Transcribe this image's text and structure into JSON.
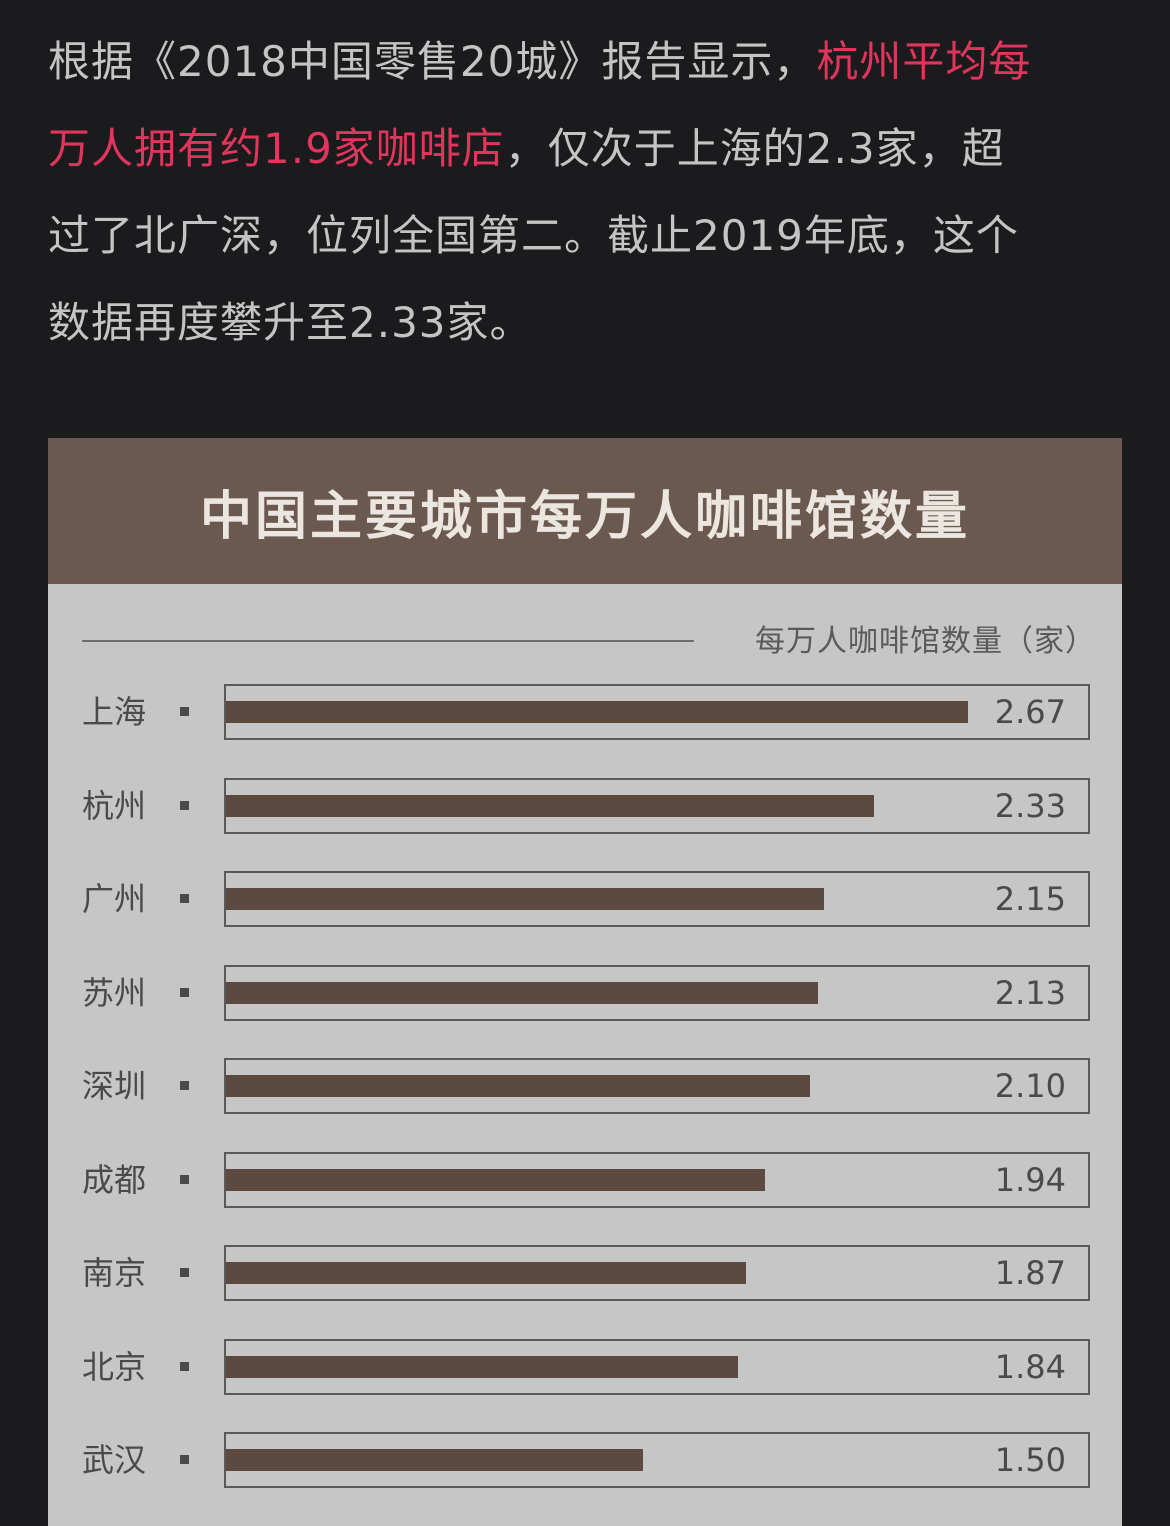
{
  "article": {
    "line1_pre": "根据《2018中国零售20城》报告显示，",
    "line1_highlight": "杭州平均每",
    "line2_highlight": "万人拥有约1.9家咖啡店",
    "line2_post": "，仅次于上海的2.3家，超",
    "line3": "过了北广深，位列全国第二。截止2019年底，这个",
    "line4": "数据再度攀升至2.33家。"
  },
  "colors": {
    "background": "#1b1a1c",
    "text": "#c4c4c4",
    "highlight": "#e0355d",
    "header": "#6b584e",
    "panel": "#c6c6c6",
    "bar": "#5c4a40"
  },
  "chart_data": {
    "type": "bar",
    "orientation": "horizontal",
    "title": "中国主要城市每万人咖啡馆数量",
    "unit_label": "每万人咖啡馆数量（家）",
    "categories": [
      "上海",
      "杭州",
      "广州",
      "苏州",
      "深圳",
      "成都",
      "南京",
      "北京",
      "武汉"
    ],
    "value_labels": [
      "2.67",
      "2.33",
      "2.15",
      "2.13",
      "2.10",
      "1.94",
      "1.87",
      "1.84",
      "1.50"
    ],
    "values": [
      2.67,
      2.33,
      2.15,
      2.13,
      2.1,
      1.94,
      1.87,
      1.84,
      1.5
    ],
    "xlim": [
      0,
      3.1
    ],
    "grid": false,
    "legend": "none"
  }
}
